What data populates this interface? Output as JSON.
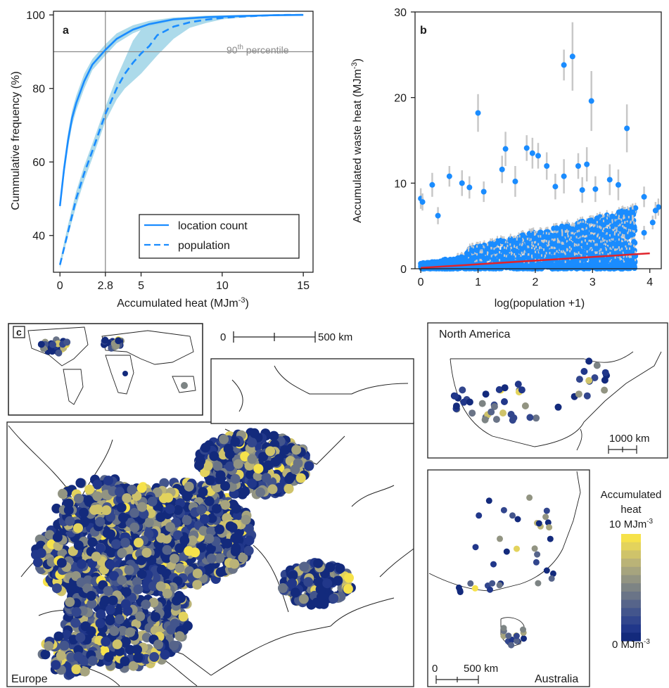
{
  "colors": {
    "blue": "#1a8cff",
    "band": "#9ed3e6",
    "red": "#e0232b",
    "errbar": "#c8c8c8",
    "map_dark": "#13295e",
    "map_yellow": "#f6e24a"
  },
  "chart_data": [
    {
      "panel": "a",
      "type": "line",
      "xlabel": "Accumulated heat  (MJm",
      "xlabel_sup": "-3",
      "xlabel_end": ")",
      "ylabel": "Cummulative frequency (%)",
      "xlim": [
        -0.4,
        15.6
      ],
      "ylim": [
        30,
        101
      ],
      "xticks": [
        "0",
        "2.8",
        "5",
        "10",
        "15"
      ],
      "xtick_values": [
        0,
        2.8,
        5,
        10,
        15
      ],
      "yticks": [
        "40",
        "60",
        "80",
        "100"
      ],
      "ytick_values": [
        40,
        60,
        80,
        100
      ],
      "reference_lines": {
        "x": 2.8,
        "y": 90
      },
      "annotation": "90",
      "annotation_sup": "th",
      "annotation_end": " percentile",
      "legend": {
        "location": "lower-right",
        "entries": [
          "location count",
          "population"
        ]
      },
      "series": [
        {
          "name": "location count",
          "style": "solid",
          "x": [
            0,
            0.25,
            0.5,
            0.75,
            1,
            1.5,
            2,
            2.8,
            3.5,
            4.5,
            5.5,
            7,
            9,
            11,
            13,
            15
          ],
          "y": [
            48,
            58,
            66,
            72,
            76,
            82,
            86.5,
            90.5,
            93.5,
            96,
            97.5,
            98.8,
            99.4,
            99.7,
            99.9,
            100
          ],
          "lower": [
            47,
            56,
            64,
            70,
            74,
            80,
            85,
            89,
            92.3,
            95,
            96.8,
            98.3,
            99.1,
            99.5,
            99.8,
            100
          ],
          "upper": [
            49,
            60,
            68,
            74,
            78,
            84,
            88,
            92,
            95,
            97.2,
            98.4,
            99.3,
            99.7,
            99.9,
            100,
            100
          ]
        },
        {
          "name": "population",
          "style": "dashed",
          "x": [
            0,
            0.5,
            1,
            1.5,
            2,
            2.8,
            3.5,
            4,
            4.5,
            5,
            5.5,
            6,
            7,
            8,
            9,
            10,
            11,
            12,
            13,
            14,
            15
          ],
          "y": [
            32,
            41,
            50,
            57,
            63,
            73,
            80,
            84,
            87,
            89.5,
            91.5,
            94.5,
            96.8,
            98,
            98.7,
            99.2,
            99.5,
            99.7,
            99.9,
            100,
            100
          ],
          "lower": [
            31,
            40,
            48,
            55,
            61,
            71,
            77,
            80,
            82,
            84,
            86.5,
            89,
            93.5,
            96.5,
            97.8,
            98.8,
            99.2,
            99.5,
            99.8,
            99.9,
            100
          ],
          "upper": [
            33,
            43,
            52,
            59,
            65,
            75,
            83,
            88,
            93,
            96,
            97,
            98,
            99,
            99.5,
            99.8,
            99.9,
            100,
            100,
            100,
            100,
            100
          ]
        }
      ]
    },
    {
      "panel": "b",
      "type": "scatter",
      "xlabel": "log(population +1)",
      "ylabel": "Accumulated waste heat (MJm",
      "ylabel_sup": "-3",
      "ylabel_end": ")",
      "xlim": [
        -0.1,
        4.2
      ],
      "ylim": [
        0,
        30
      ],
      "xticks": [
        "0",
        "1",
        "2",
        "3",
        "4"
      ],
      "xtick_values": [
        0,
        1,
        2,
        3,
        4
      ],
      "yticks": [
        "0",
        "10",
        "20",
        "30"
      ],
      "ytick_values": [
        0,
        10,
        20,
        30
      ],
      "fit_line": {
        "x": [
          0,
          4
        ],
        "y": [
          0.1,
          1.8
        ]
      },
      "outliers": [
        {
          "x": 2.65,
          "y": 24.8,
          "err": 4.0
        },
        {
          "x": 2.5,
          "y": 23.8,
          "err": 1.8
        },
        {
          "x": 2.98,
          "y": 19.6,
          "err": 3.5
        },
        {
          "x": 1.0,
          "y": 18.2,
          "err": 2.2
        },
        {
          "x": 3.6,
          "y": 16.4,
          "err": 2.8
        },
        {
          "x": 1.48,
          "y": 14.0,
          "err": 2.0
        },
        {
          "x": 1.85,
          "y": 14.1,
          "err": 1.5
        },
        {
          "x": 1.95,
          "y": 13.5,
          "err": 1.8
        },
        {
          "x": 2.05,
          "y": 13.2,
          "err": 1.5
        },
        {
          "x": 1.42,
          "y": 11.6,
          "err": 1.6
        },
        {
          "x": 2.2,
          "y": 12.0,
          "err": 1.6
        },
        {
          "x": 2.9,
          "y": 12.2,
          "err": 2.0
        },
        {
          "x": 2.75,
          "y": 12.0,
          "err": 1.5
        },
        {
          "x": 0.5,
          "y": 10.8,
          "err": 1.2
        },
        {
          "x": 0.72,
          "y": 10.0,
          "err": 1.5
        },
        {
          "x": 0.2,
          "y": 9.8,
          "err": 1.4
        },
        {
          "x": 0.85,
          "y": 9.5,
          "err": 1.3
        },
        {
          "x": 1.65,
          "y": 10.2,
          "err": 1.8
        },
        {
          "x": 2.5,
          "y": 10.8,
          "err": 2.0
        },
        {
          "x": 3.3,
          "y": 10.4,
          "err": 1.8
        },
        {
          "x": 3.45,
          "y": 9.8,
          "err": 1.8
        },
        {
          "x": 2.35,
          "y": 9.6,
          "err": 1.5
        },
        {
          "x": 2.82,
          "y": 9.2,
          "err": 1.5
        },
        {
          "x": 3.05,
          "y": 9.3,
          "err": 1.5
        },
        {
          "x": 1.1,
          "y": 9.0,
          "err": 1.2
        },
        {
          "x": 3.9,
          "y": 8.4,
          "err": 1.2
        },
        {
          "x": 0.0,
          "y": 8.2,
          "err": 1.2
        },
        {
          "x": 0.03,
          "y": 7.8,
          "err": 1.0
        },
        {
          "x": 4.15,
          "y": 7.2,
          "err": 1.0
        },
        {
          "x": 4.1,
          "y": 6.8,
          "err": 1.0
        },
        {
          "x": 0.3,
          "y": 6.2,
          "err": 1.0
        },
        {
          "x": 3.7,
          "y": 6.6,
          "err": 1.0
        },
        {
          "x": 4.05,
          "y": 5.4,
          "err": 0.8
        },
        {
          "x": 3.9,
          "y": 4.2,
          "err": 0.8
        }
      ]
    }
  ],
  "panel_labels": {
    "a": "a",
    "b": "b",
    "c": "c"
  },
  "maps": {
    "scale_europe": {
      "start": "0",
      "end": "500 km"
    },
    "north_america": {
      "title": "North America",
      "scale": "1000 km"
    },
    "australia": {
      "title": "Australia",
      "scale_start": "0",
      "scale_end": "500 km"
    },
    "europe": {
      "title": "Europe"
    },
    "colorbar": {
      "title_1": "Accumulated",
      "title_2": "heat",
      "max_label": "10 MJm",
      "max_sup": "-3",
      "min_label": "0 MJm",
      "min_sup": "-3",
      "colors": [
        "#f6e24a",
        "#e3d35c",
        "#cfc36a",
        "#bab377",
        "#a6a47e",
        "#929482",
        "#7d8484",
        "#6a7487",
        "#56648a",
        "#43558c",
        "#32468d",
        "#21378a",
        "#132a7c"
      ]
    }
  }
}
